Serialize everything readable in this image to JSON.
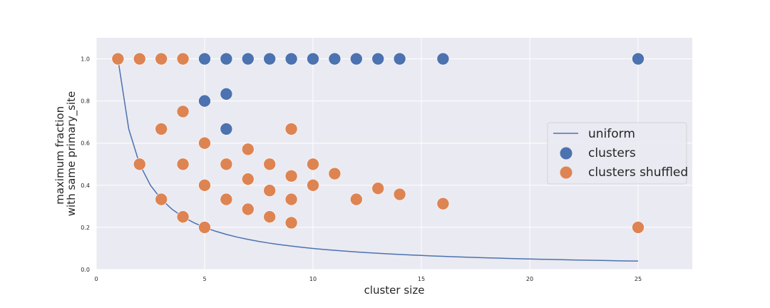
{
  "chart_data": {
    "type": "scatter",
    "xlabel": "cluster size",
    "ylabel_lines": [
      "maximum fraction",
      "with same primary_site"
    ],
    "xlim": [
      0,
      27.5
    ],
    "ylim": [
      0,
      1.1
    ],
    "xticks": [
      0,
      5,
      10,
      15,
      20,
      25
    ],
    "yticks": [
      0.0,
      0.2,
      0.4,
      0.6,
      0.8,
      1.0
    ],
    "xtick_labels": [
      "0",
      "5",
      "10",
      "15",
      "20",
      "25"
    ],
    "ytick_labels": [
      "0.0",
      "0.2",
      "0.4",
      "0.6",
      "0.8",
      "1.0"
    ],
    "grid": true,
    "legend_position": "center-right",
    "colors": {
      "background": "#EAEAF2",
      "grid": "#ffffff",
      "uniform": "#4C72B0",
      "clusters": "#4C72B0",
      "clusters_shuffled": "#DD8452"
    },
    "series": [
      {
        "name": "uniform",
        "kind": "line",
        "function": "1/x",
        "x_range": [
          1,
          25
        ]
      },
      {
        "name": "clusters",
        "kind": "scatter",
        "points": [
          [
            1,
            1.0
          ],
          [
            2,
            1.0
          ],
          [
            3,
            1.0
          ],
          [
            4,
            1.0
          ],
          [
            5,
            1.0
          ],
          [
            6,
            1.0
          ],
          [
            7,
            1.0
          ],
          [
            8,
            1.0
          ],
          [
            9,
            1.0
          ],
          [
            10,
            1.0
          ],
          [
            11,
            1.0
          ],
          [
            12,
            1.0
          ],
          [
            13,
            1.0
          ],
          [
            14,
            1.0
          ],
          [
            16,
            1.0
          ],
          [
            25,
            1.0
          ],
          [
            5,
            0.8
          ],
          [
            6,
            0.833
          ],
          [
            6,
            0.667
          ]
        ]
      },
      {
        "name": "clusters shuffled",
        "kind": "scatter",
        "points": [
          [
            1,
            1.0
          ],
          [
            2,
            1.0
          ],
          [
            3,
            1.0
          ],
          [
            4,
            1.0
          ],
          [
            2,
            0.5
          ],
          [
            3,
            0.667
          ],
          [
            3,
            0.333
          ],
          [
            4,
            0.75
          ],
          [
            4,
            0.5
          ],
          [
            4,
            0.25
          ],
          [
            5,
            0.6
          ],
          [
            5,
            0.4
          ],
          [
            5,
            0.2
          ],
          [
            6,
            0.5
          ],
          [
            6,
            0.333
          ],
          [
            7,
            0.571
          ],
          [
            7,
            0.429
          ],
          [
            7,
            0.286
          ],
          [
            8,
            0.5
          ],
          [
            8,
            0.375
          ],
          [
            8,
            0.25
          ],
          [
            9,
            0.667
          ],
          [
            9,
            0.444
          ],
          [
            9,
            0.333
          ],
          [
            9,
            0.222
          ],
          [
            10,
            0.5
          ],
          [
            10,
            0.4
          ],
          [
            11,
            0.455
          ],
          [
            12,
            0.333
          ],
          [
            13,
            0.385
          ],
          [
            14,
            0.357
          ],
          [
            16,
            0.3125
          ],
          [
            25,
            0.2
          ]
        ]
      }
    ]
  }
}
